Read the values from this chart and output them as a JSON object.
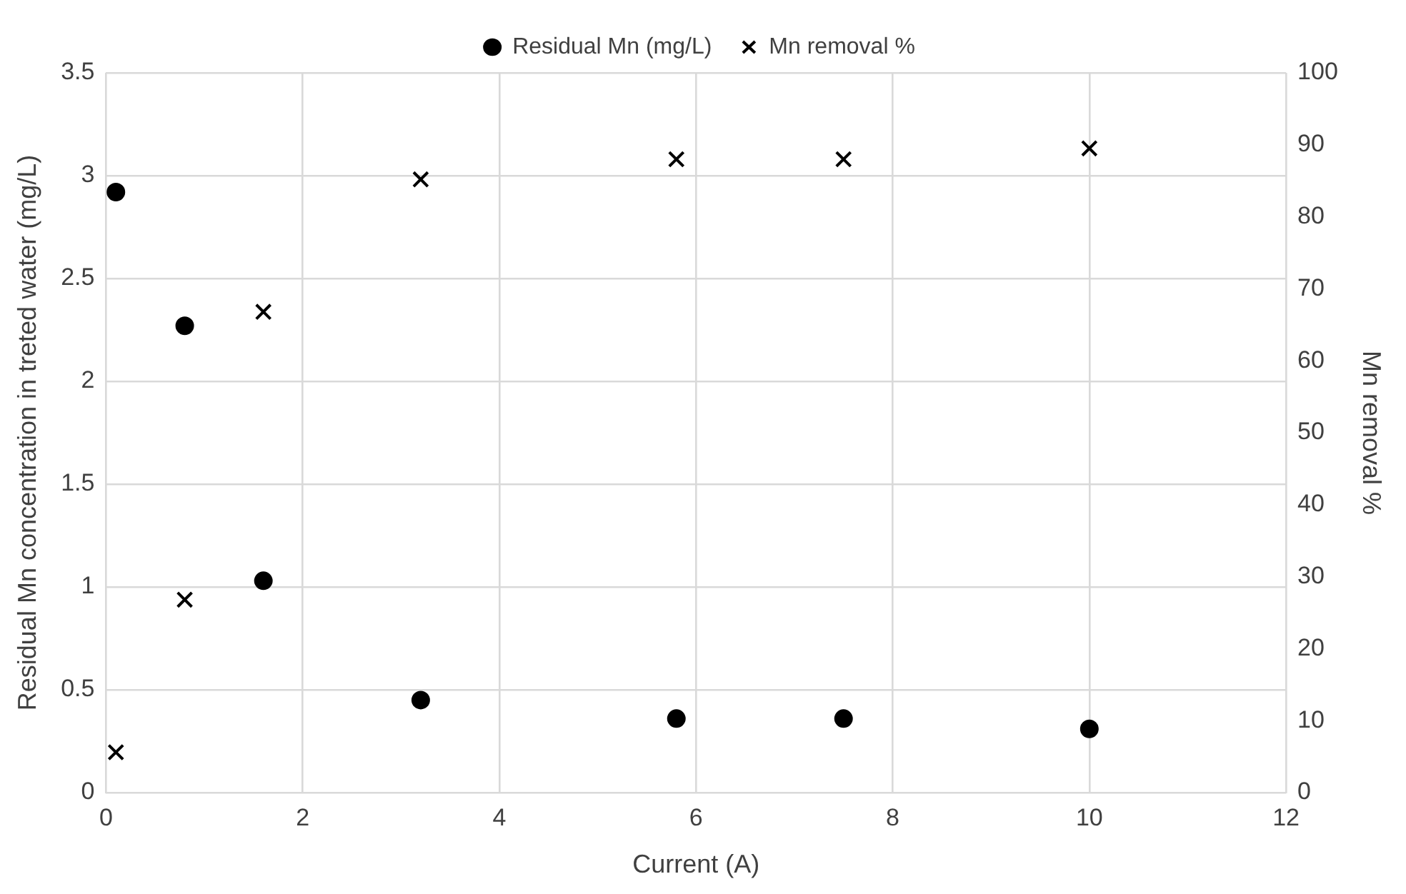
{
  "chart_data": {
    "type": "scatter",
    "xlabel": "Current (A)",
    "ylabel": "Residual Mn concentration in treted water (mg/L)",
    "y2label": "Mn removal %",
    "x": [
      0.1,
      0.8,
      1.6,
      3.2,
      5.8,
      7.5,
      10
    ],
    "series": [
      {
        "name": "Residual Mn (mg/L)",
        "color": "#000000",
        "marker": "circle",
        "values": [
          2.92,
          2.27,
          1.03,
          0.45,
          0.36,
          0.36,
          0.31
        ]
      },
      {
        "name": "Mn removal %",
        "color": "#000000",
        "marker": "cross",
        "axis": "y2",
        "values": [
          5.6,
          26.8,
          66.8,
          85.2,
          88,
          88,
          89.5
        ]
      }
    ],
    "xlim": [
      0,
      12
    ],
    "xticks": [
      0,
      2,
      4,
      6,
      8,
      10,
      12
    ],
    "ylim": [
      0,
      3.5
    ],
    "yticks": [
      0,
      0.5,
      1,
      1.5,
      2,
      2.5,
      3,
      3.5
    ],
    "y2lim": [
      0,
      100
    ],
    "y2ticks": [
      0,
      10,
      20,
      30,
      40,
      50,
      60,
      70,
      80,
      90,
      100
    ],
    "grid": true,
    "legend": "top"
  }
}
